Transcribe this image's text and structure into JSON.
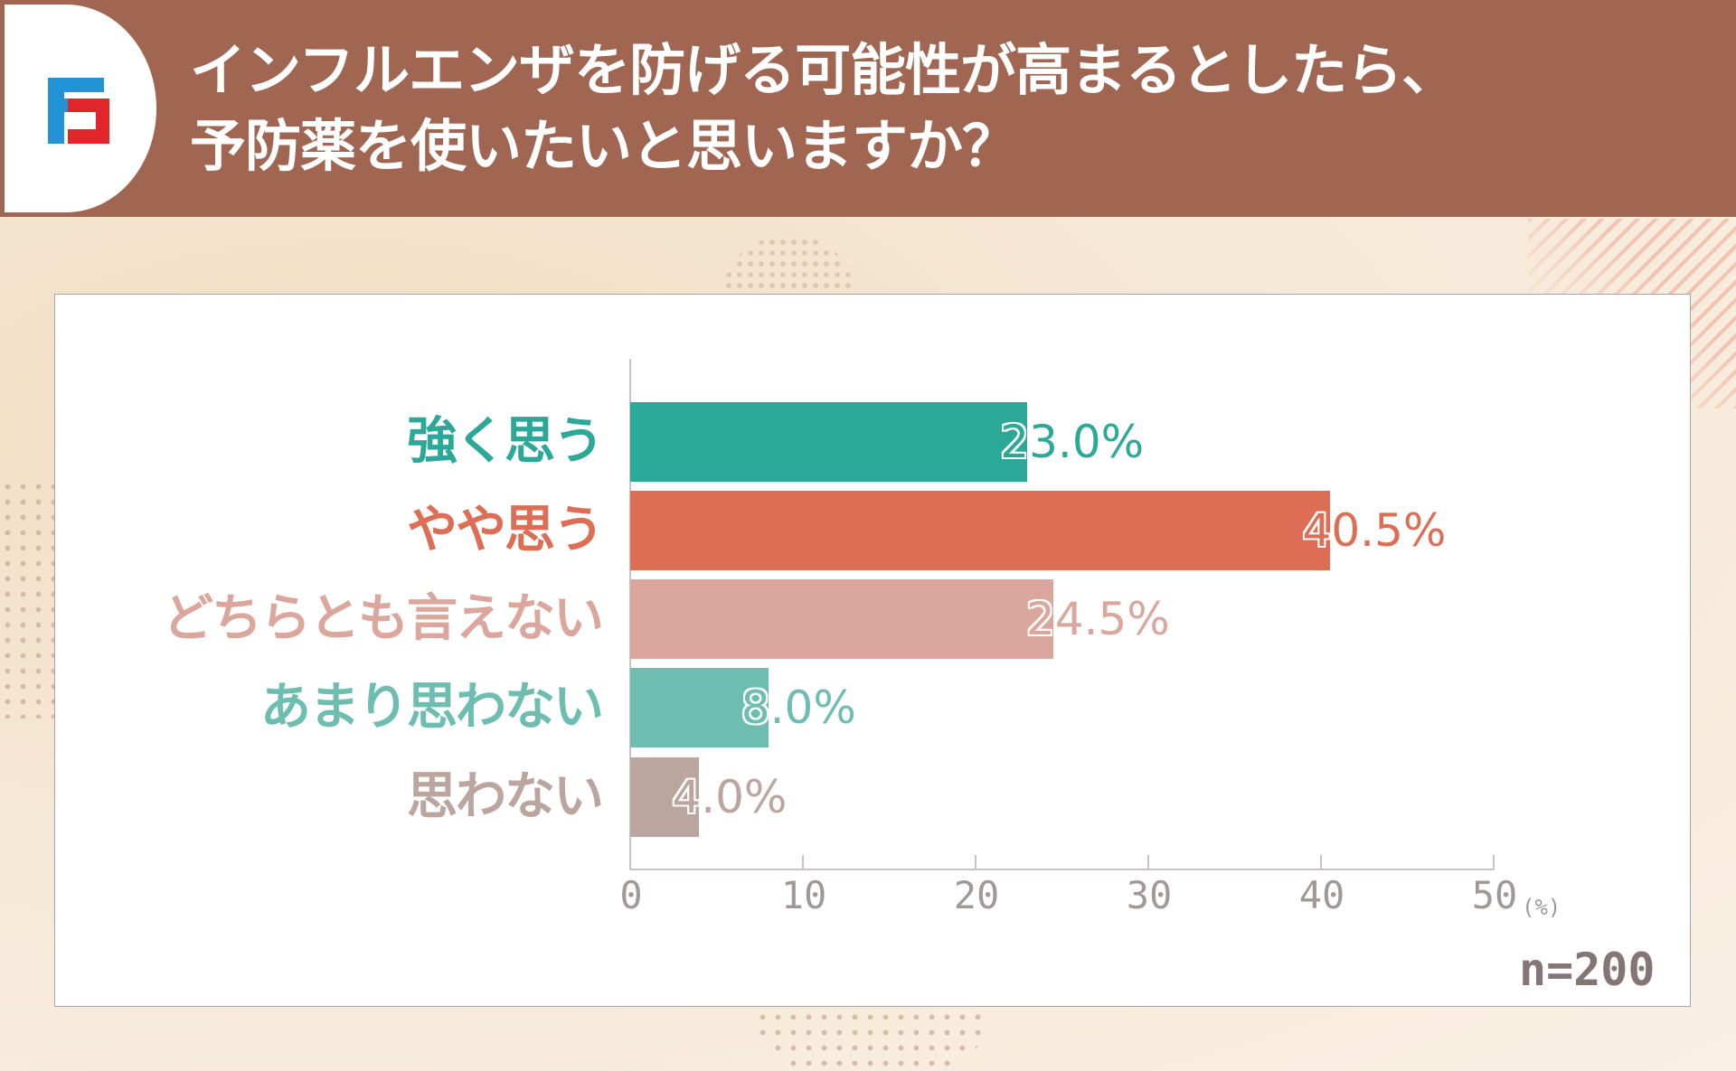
{
  "header": {
    "title_line1": "インフルエンザを防げる可能性が高まるとしたら、",
    "title_line2": "予防薬を使いたいと思いますか？",
    "background_color": "#a06652",
    "logo": "brand-logo-icon"
  },
  "chart_data": {
    "type": "bar",
    "orientation": "horizontal",
    "title": "インフルエンザを防げる可能性が高まるとしたら、予防薬を使いたいと思いますか？",
    "categories": [
      "強く思う",
      "やや思う",
      "どちらとも言えない",
      "あまり思わない",
      "思わない"
    ],
    "values": [
      23.0,
      40.5,
      24.5,
      8.0,
      4.0
    ],
    "value_labels": [
      "23.0%",
      "40.5%",
      "24.5%",
      "8.0%",
      "4.0%"
    ],
    "colors": [
      "#2ba898",
      "#dd6e55",
      "#dba69c",
      "#6dbdb0",
      "#bba59f"
    ],
    "xlabel": "(%)",
    "ylabel": "",
    "xlim": [
      0,
      50
    ],
    "xticks": [
      "0",
      "10",
      "20",
      "30",
      "40",
      "50"
    ],
    "grid": false,
    "legend": "none",
    "annotation": "n=200"
  },
  "axis": {
    "ticks": [
      "0",
      "10",
      "20",
      "30",
      "40",
      "50"
    ],
    "unit": "(%)"
  },
  "sample": {
    "label": "n=200"
  }
}
